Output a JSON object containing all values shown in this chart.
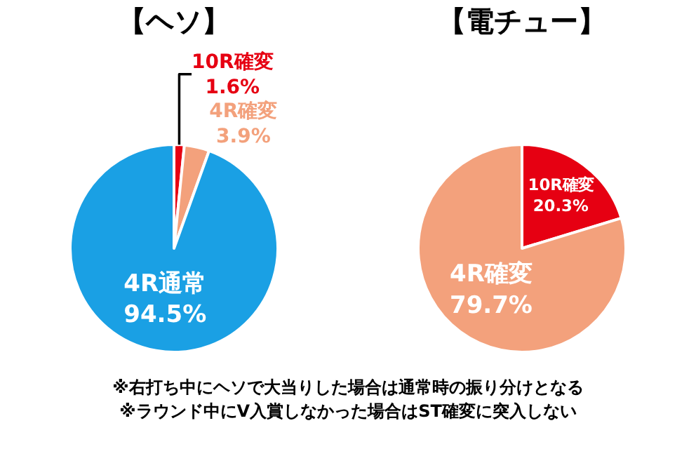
{
  "chart_data": [
    {
      "type": "pie",
      "title": "【ヘソ】",
      "categories": [
        "10R確変",
        "4R確変",
        "4R通常"
      ],
      "values": [
        1.6,
        3.9,
        94.5
      ],
      "colors": [
        "#e60012",
        "#f3a17c",
        "#1aa0e4"
      ],
      "value_labels": [
        "1.6%",
        "3.9%",
        "94.5%"
      ],
      "annotations": [
        "※右打ち中にヘソで大当りした場合は通常時の振り分けとなる",
        "※ラウンド中にV入賞しなかった場合はST確変に突入しない"
      ]
    },
    {
      "type": "pie",
      "title": "【電チュー】",
      "categories": [
        "10R確変",
        "4R確変"
      ],
      "values": [
        20.3,
        79.7
      ],
      "colors": [
        "#e60012",
        "#f3a17c"
      ],
      "value_labels": [
        "20.3%",
        "79.7%"
      ]
    }
  ]
}
